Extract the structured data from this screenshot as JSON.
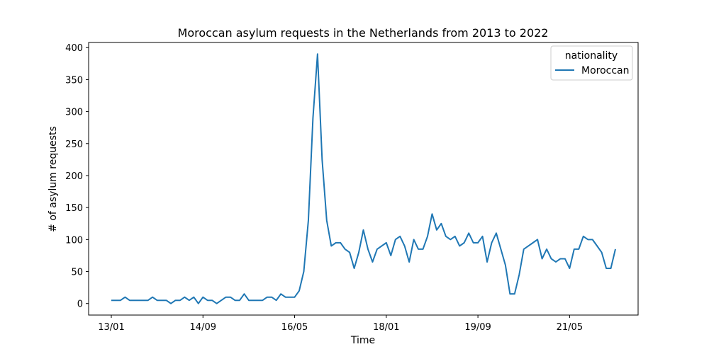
{
  "chart_data": {
    "type": "line",
    "title": "Moroccan asylum requests in the Netherlands from 2013 to 2022",
    "xlabel": "Time",
    "ylabel": "# of asylum requests",
    "x_tick_labels": [
      "13/01",
      "14/09",
      "16/05",
      "18/01",
      "19/09",
      "21/05"
    ],
    "y_ticks": [
      0,
      50,
      100,
      150,
      200,
      250,
      300,
      350,
      400
    ],
    "ylim": [
      -18,
      408
    ],
    "grid": false,
    "legend": {
      "title": "nationality",
      "placement": "top-right"
    },
    "series": [
      {
        "name": "Moroccan",
        "color": "#1f77b4",
        "x": [
          "2013-01",
          "2013-02",
          "2013-03",
          "2013-04",
          "2013-05",
          "2013-06",
          "2013-07",
          "2013-08",
          "2013-09",
          "2013-10",
          "2013-11",
          "2013-12",
          "2014-01",
          "2014-02",
          "2014-03",
          "2014-04",
          "2014-05",
          "2014-06",
          "2014-07",
          "2014-08",
          "2014-09",
          "2014-10",
          "2014-11",
          "2014-12",
          "2015-01",
          "2015-02",
          "2015-03",
          "2015-04",
          "2015-05",
          "2015-06",
          "2015-07",
          "2015-08",
          "2015-09",
          "2015-10",
          "2015-11",
          "2015-12",
          "2016-01",
          "2016-02",
          "2016-03",
          "2016-04",
          "2016-05",
          "2016-06",
          "2016-07",
          "2016-08",
          "2016-09",
          "2016-10",
          "2016-11",
          "2016-12",
          "2017-01",
          "2017-02",
          "2017-03",
          "2017-04",
          "2017-05",
          "2017-06",
          "2017-07",
          "2017-08",
          "2017-09",
          "2017-10",
          "2017-11",
          "2017-12",
          "2018-01",
          "2018-02",
          "2018-03",
          "2018-04",
          "2018-05",
          "2018-06",
          "2018-07",
          "2018-08",
          "2018-09",
          "2018-10",
          "2018-11",
          "2018-12",
          "2019-01",
          "2019-02",
          "2019-03",
          "2019-04",
          "2019-05",
          "2019-06",
          "2019-07",
          "2019-08",
          "2019-09",
          "2019-10",
          "2019-11",
          "2019-12",
          "2020-01",
          "2020-02",
          "2020-03",
          "2020-04",
          "2020-05",
          "2020-06",
          "2020-07",
          "2020-08",
          "2020-09",
          "2020-10",
          "2020-11",
          "2020-12",
          "2021-01",
          "2021-02",
          "2021-03",
          "2021-04",
          "2021-05",
          "2021-06",
          "2021-07",
          "2021-08",
          "2021-09",
          "2021-10",
          "2021-11",
          "2021-12",
          "2022-01",
          "2022-02",
          "2022-03"
        ],
        "values": [
          5,
          5,
          5,
          10,
          5,
          5,
          5,
          5,
          5,
          10,
          5,
          5,
          5,
          0,
          5,
          5,
          10,
          5,
          10,
          0,
          10,
          5,
          5,
          0,
          5,
          10,
          10,
          5,
          5,
          15,
          5,
          5,
          5,
          5,
          10,
          10,
          5,
          15,
          10,
          10,
          10,
          20,
          50,
          130,
          290,
          390,
          225,
          130,
          90,
          95,
          95,
          85,
          80,
          55,
          80,
          115,
          85,
          65,
          85,
          90,
          95,
          75,
          100,
          105,
          90,
          65,
          100,
          85,
          85,
          105,
          140,
          115,
          125,
          105,
          100,
          105,
          90,
          95,
          110,
          95,
          95,
          105,
          65,
          95,
          110,
          85,
          60,
          15,
          15,
          45,
          85,
          90,
          95,
          100,
          70,
          85,
          70,
          65,
          70,
          70,
          55,
          85,
          85,
          105,
          100,
          100,
          90,
          80,
          55,
          55,
          85
        ]
      }
    ]
  }
}
